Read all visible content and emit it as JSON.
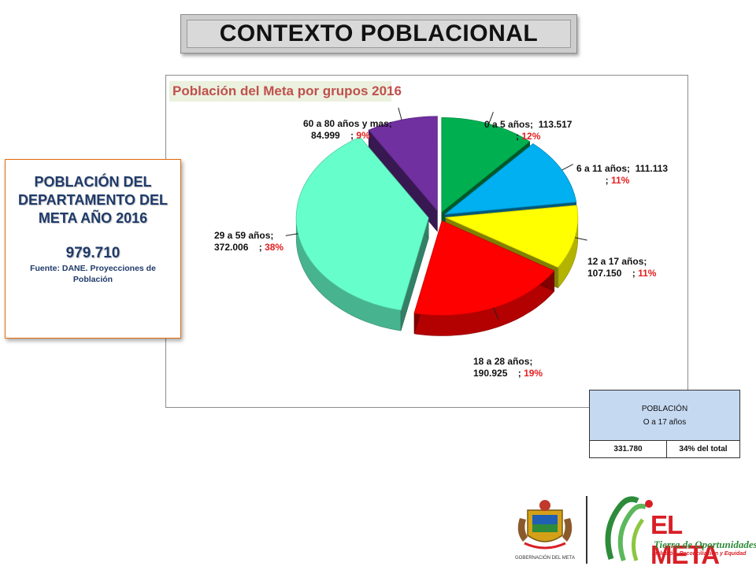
{
  "header": {
    "title": "CONTEXTO POBLACIONAL"
  },
  "chart_data": {
    "type": "pie",
    "title": "Población del Meta por grupos  2016",
    "categories": [
      "0 a 5 años",
      "6 a 11 años",
      "12 a 17 años",
      "18 a 28 años",
      "29 a 59 años",
      "60 a 80 años y mas"
    ],
    "values": [
      113517,
      111113,
      107150,
      190925,
      372006,
      84999
    ],
    "display_values": [
      "113.517",
      "111.113",
      "107.150",
      "190.925",
      "372.006",
      "84.999"
    ],
    "percents": [
      "12%",
      "11%",
      "11%",
      "19%",
      "38%",
      "9%"
    ],
    "colors": [
      "#00b050",
      "#00b0f0",
      "#ffff00",
      "#ff0000",
      "#66ffcc",
      "#7030a0"
    ],
    "style": "3d-exploded"
  },
  "population_box": {
    "heading": "POBLACIÓN DEL DEPARTAMENTO DEL META AÑO 2016",
    "total": "979.710",
    "source": "Fuente: DANE. Proyecciones de Población"
  },
  "summary_table": {
    "header_line1": "POBLACIÓN",
    "header_line2": "O a 17 años",
    "value": "331.780",
    "share": "34% del total"
  },
  "logos": {
    "seal_caption": "GOBERNACIÓN DEL META",
    "brand_name": "EL META",
    "brand_slogan": "Tierra de Oportunidades",
    "brand_tagline": "Inclusión, Reconciliación y Equidad"
  }
}
